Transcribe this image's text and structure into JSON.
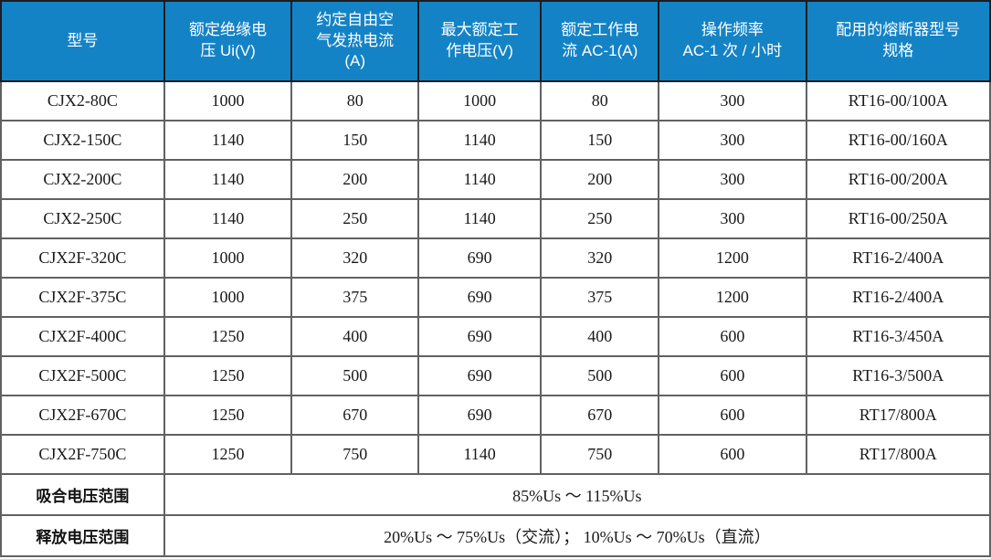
{
  "table": {
    "columns": [
      "型号",
      "额定绝缘电\n压 Ui(V)",
      "约定自由空\n气发热电流\n(A)",
      "最大额定工\n作电压(V)",
      "额定工作电\n流 AC-1(A)",
      "操作频率\nAC-1 次 / 小时",
      "配用的熔断器型号\n规格"
    ],
    "rows": [
      [
        "CJX2-80C",
        "1000",
        "80",
        "1000",
        "80",
        "300",
        "RT16-00/100A"
      ],
      [
        "CJX2-150C",
        "1140",
        "150",
        "1140",
        "150",
        "300",
        "RT16-00/160A"
      ],
      [
        "CJX2-200C",
        "1140",
        "200",
        "1140",
        "200",
        "300",
        "RT16-00/200A"
      ],
      [
        "CJX2-250C",
        "1140",
        "250",
        "1140",
        "250",
        "300",
        "RT16-00/250A"
      ],
      [
        "CJX2F-320C",
        "1000",
        "320",
        "690",
        "320",
        "1200",
        "RT16-2/400A"
      ],
      [
        "CJX2F-375C",
        "1000",
        "375",
        "690",
        "375",
        "1200",
        "RT16-2/400A"
      ],
      [
        "CJX2F-400C",
        "1250",
        "400",
        "690",
        "400",
        "600",
        "RT16-3/450A"
      ],
      [
        "CJX2F-500C",
        "1250",
        "500",
        "690",
        "500",
        "600",
        "RT16-3/500A"
      ],
      [
        "CJX2F-670C",
        "1250",
        "670",
        "690",
        "670",
        "600",
        "RT17/800A"
      ],
      [
        "CJX2F-750C",
        "1250",
        "750",
        "1140",
        "750",
        "600",
        "RT17/800A"
      ]
    ],
    "footer_rows": [
      {
        "label": "吸合电压范围",
        "value": "85%Us ～ 115%Us"
      },
      {
        "label": "释放电压范围",
        "value": "20%Us ～ 75%Us（交流）； 10%Us ～ 70%Us（直流）"
      }
    ],
    "colors": {
      "header_bg": "#1483c6",
      "header_text": "#ffffff",
      "grid_line": "#616161",
      "outer_border": "#3f3f3f",
      "body_text": "#1a1a1a"
    }
  }
}
